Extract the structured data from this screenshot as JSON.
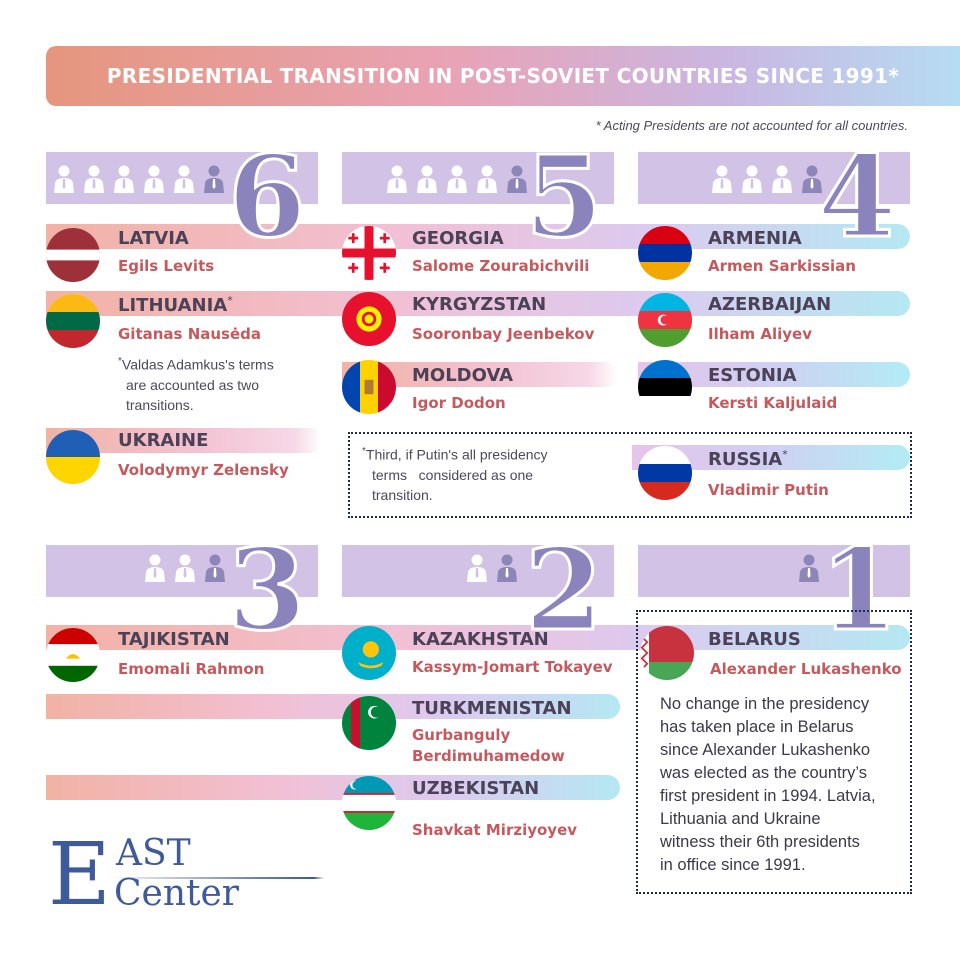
{
  "title": "PRESIDENTIAL TRANSITION IN POST-SOVIET COUNTRIES SINCE 1991*",
  "footnote": "* Acting Presidents are not accounted for all countries.",
  "groups": [
    {
      "number": "6",
      "people": 6
    },
    {
      "number": "5",
      "people": 5
    },
    {
      "number": "4",
      "people": 4
    },
    {
      "number": "3",
      "people": 3
    },
    {
      "number": "2",
      "people": 2
    },
    {
      "number": "1",
      "people": 1
    }
  ],
  "countries": {
    "latvia": {
      "name": "LATVIA",
      "president": "Egils Levits"
    },
    "lithuania": {
      "name": "LITHUANIA",
      "mark": "*",
      "president": "Gitanas Nausėda"
    },
    "ukraine": {
      "name": "UKRAINE",
      "president": "Volodymyr Zelensky"
    },
    "georgia": {
      "name": "GEORGIA",
      "president": "Salome Zourabichvili"
    },
    "kyrgyzstan": {
      "name": "KYRGYZSTAN",
      "president": "Sooronbay Jeenbekov"
    },
    "moldova": {
      "name": "MOLDOVA",
      "president": "Igor Dodon"
    },
    "armenia": {
      "name": "ARMENIA",
      "president": "Armen Sarkissian"
    },
    "azerbaijan": {
      "name": "AZERBAIJAN",
      "president": "Ilham Aliyev"
    },
    "estonia": {
      "name": "ESTONIA",
      "president": "Kersti Kaljulaid"
    },
    "russia": {
      "name": "RUSSIA",
      "mark": "*",
      "president": "Vladimir Putin"
    },
    "tajikistan": {
      "name": "TAJIKISTAN",
      "president": "Emomali Rahmon"
    },
    "kazakhstan": {
      "name": "KAZAKHSTAN",
      "president": "Kassym-Jomart Tokayev"
    },
    "turkmenistan": {
      "name": "TURKMENISTAN",
      "president_line1": "Gurbanguly",
      "president_line2": "Berdimuhamedow"
    },
    "uzbekistan": {
      "name": "UZBEKISTAN",
      "president": "Shavkat Mirziyoyev"
    },
    "belarus": {
      "name": "BELARUS",
      "president": "Alexander Lukashenko"
    }
  },
  "notes": {
    "lithuania": {
      "mark": "*",
      "lines": [
        "Valdas Adamkus's terms",
        "are accounted as two",
        "transitions."
      ]
    },
    "russia": {
      "mark": "*",
      "lines": [
        "Third, if Putin's all presidency",
        "terms   considered as one",
        "transition."
      ]
    },
    "belarus": {
      "lines": [
        "No change in the presidency",
        "has taken place in Belarus",
        "since Alexander Lukashenko",
        "was elected as the country’s",
        "first president in 1994. Latvia,",
        "Lithuania and Ukraine",
        "witness their 6th presidents",
        "in office since 1991."
      ]
    }
  },
  "logo": {
    "letter": "E",
    "line1": "AST",
    "line2": "Center"
  },
  "colors": {
    "number": "#8b84bc",
    "panel": "#d1c2e6",
    "country": "#4b4257",
    "president": "#c55a5e",
    "logo": "#3e5a9a"
  }
}
